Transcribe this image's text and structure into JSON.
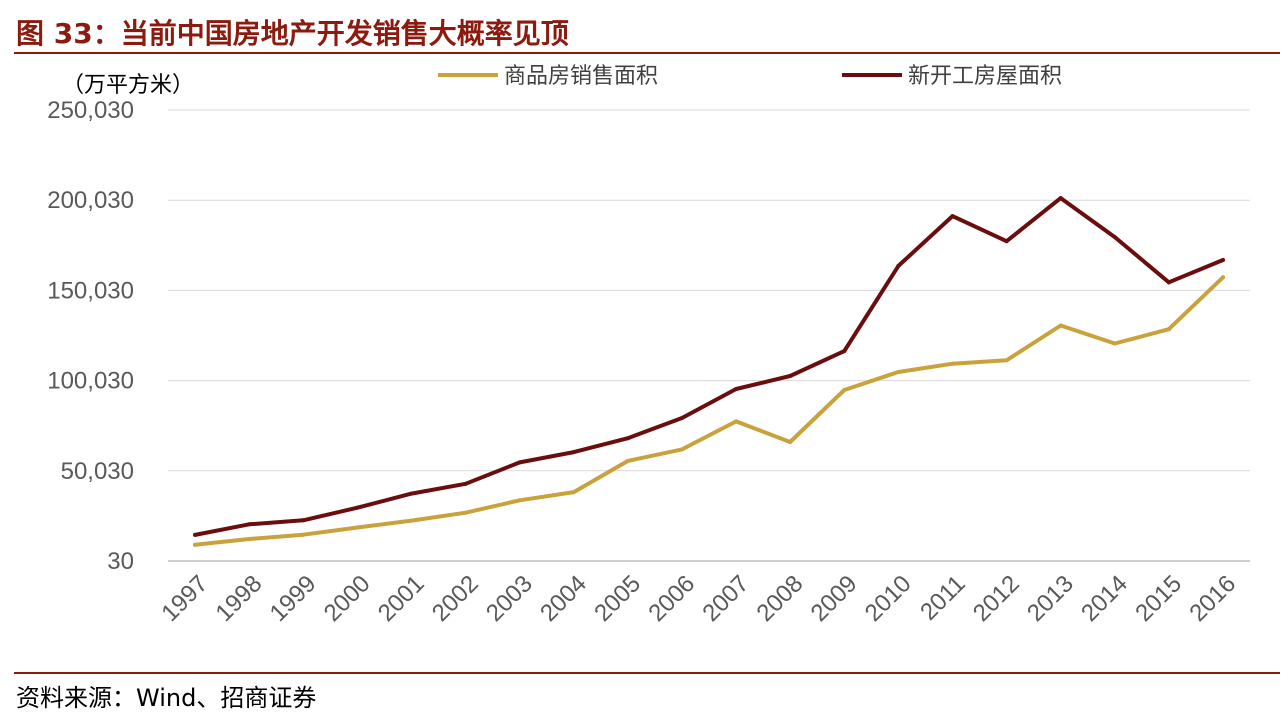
{
  "header": {
    "title": "图 33：当前中国房地产开发销售大概率见顶"
  },
  "footer": {
    "source": "资料来源：Wind、招商证券"
  },
  "colors": {
    "title": "#8b1a0f",
    "sales": "#c9a23c",
    "starts": "#6b0d0d",
    "grid": "#d9d9d9"
  },
  "chart_data": {
    "type": "line",
    "title": "当前中国房地产开发销售大概率见顶",
    "ylabel": "（万平方米）",
    "xlabel": "",
    "ylim": [
      30,
      250030
    ],
    "yticks": [
      30,
      50030,
      100030,
      150030,
      200030,
      250030
    ],
    "ytick_labels": [
      "30",
      "50,030",
      "100,030",
      "150,030",
      "200,030",
      "250,030"
    ],
    "grid": true,
    "legend_position": "top",
    "categories": [
      "1997",
      "1998",
      "1999",
      "2000",
      "2001",
      "2002",
      "2003",
      "2004",
      "2005",
      "2006",
      "2007",
      "2008",
      "2009",
      "2010",
      "2011",
      "2012",
      "2013",
      "2014",
      "2015",
      "2016"
    ],
    "series": [
      {
        "name": "商品房销售面积",
        "color": "#c9a23c",
        "values": [
          9000,
          12200,
          14600,
          18600,
          22400,
          26800,
          33700,
          38200,
          55500,
          61900,
          77400,
          66000,
          94800,
          104800,
          109400,
          111300,
          130600,
          120600,
          128500,
          157300
        ]
      },
      {
        "name": "新开工房屋面积",
        "color": "#6b0d0d",
        "values": [
          14500,
          20400,
          22600,
          29600,
          37400,
          42800,
          54700,
          60400,
          68100,
          79300,
          95400,
          102600,
          116400,
          163600,
          191200,
          177300,
          201200,
          179600,
          154500,
          166900
        ]
      }
    ]
  }
}
